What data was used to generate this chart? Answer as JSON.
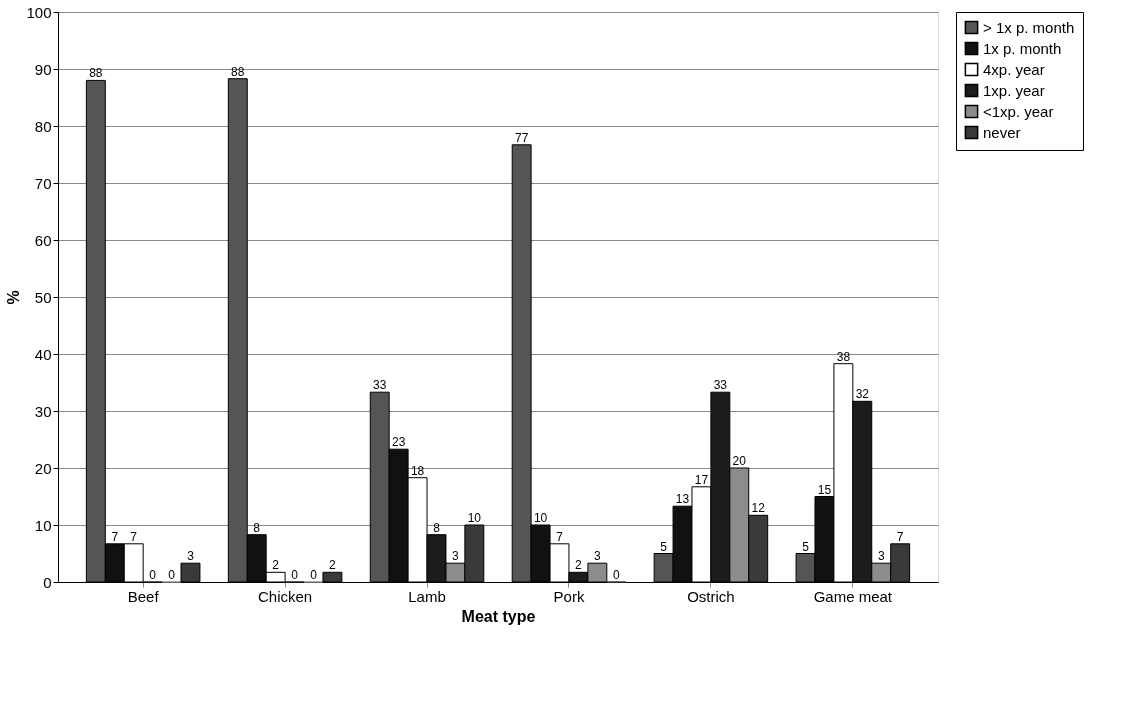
{
  "chart_data": {
    "type": "bar",
    "xlabel": "Meat type",
    "ylabel": "%",
    "categories": [
      "Beef",
      "Chicken",
      "Lamb",
      "Pork",
      "Ostrich",
      "Game meat"
    ],
    "series": [
      {
        "name": "> 1x p. month",
        "color": "#555555",
        "values": [
          88,
          88.3,
          33.3,
          76.7,
          5,
          5
        ],
        "value_labels": [
          "88",
          "88",
          "33",
          "77",
          "5",
          "5"
        ]
      },
      {
        "name": "1x p. month",
        "color": "#111111",
        "values": [
          6.7,
          8.3,
          23.3,
          10,
          13.3,
          15
        ],
        "value_labels": [
          "7",
          "8",
          "23",
          "10",
          "13",
          "15"
        ]
      },
      {
        "name": "4xp. year",
        "color": "#ffffff",
        "values": [
          6.7,
          1.7,
          18.3,
          6.7,
          16.7,
          38.3
        ],
        "value_labels": [
          "7",
          "2",
          "18",
          "7",
          "17",
          "38"
        ]
      },
      {
        "name": "1xp. year",
        "color": "#1c1c1c",
        "values": [
          0,
          0,
          8.3,
          1.7,
          33.3,
          31.7
        ],
        "value_labels": [
          "0",
          "0",
          "8",
          "2",
          "33",
          "32"
        ]
      },
      {
        "name": "<1xp. year",
        "color": "#8c8c8c",
        "values": [
          0,
          0,
          3.3,
          3.3,
          20,
          3.3
        ],
        "value_labels": [
          "0",
          "0",
          "3",
          "3",
          "20",
          "3"
        ]
      },
      {
        "name": "never",
        "color": "#3a3a3a",
        "values": [
          3.3,
          1.7,
          10,
          0,
          11.7,
          6.7
        ],
        "value_labels": [
          "3",
          "2",
          "10",
          "0",
          "12",
          "7"
        ]
      }
    ],
    "ylim": [
      0,
      100
    ],
    "yticks": [
      0,
      10,
      20,
      30,
      40,
      50,
      60,
      70,
      80,
      90,
      100
    ],
    "grid": "y",
    "legend": "right"
  }
}
